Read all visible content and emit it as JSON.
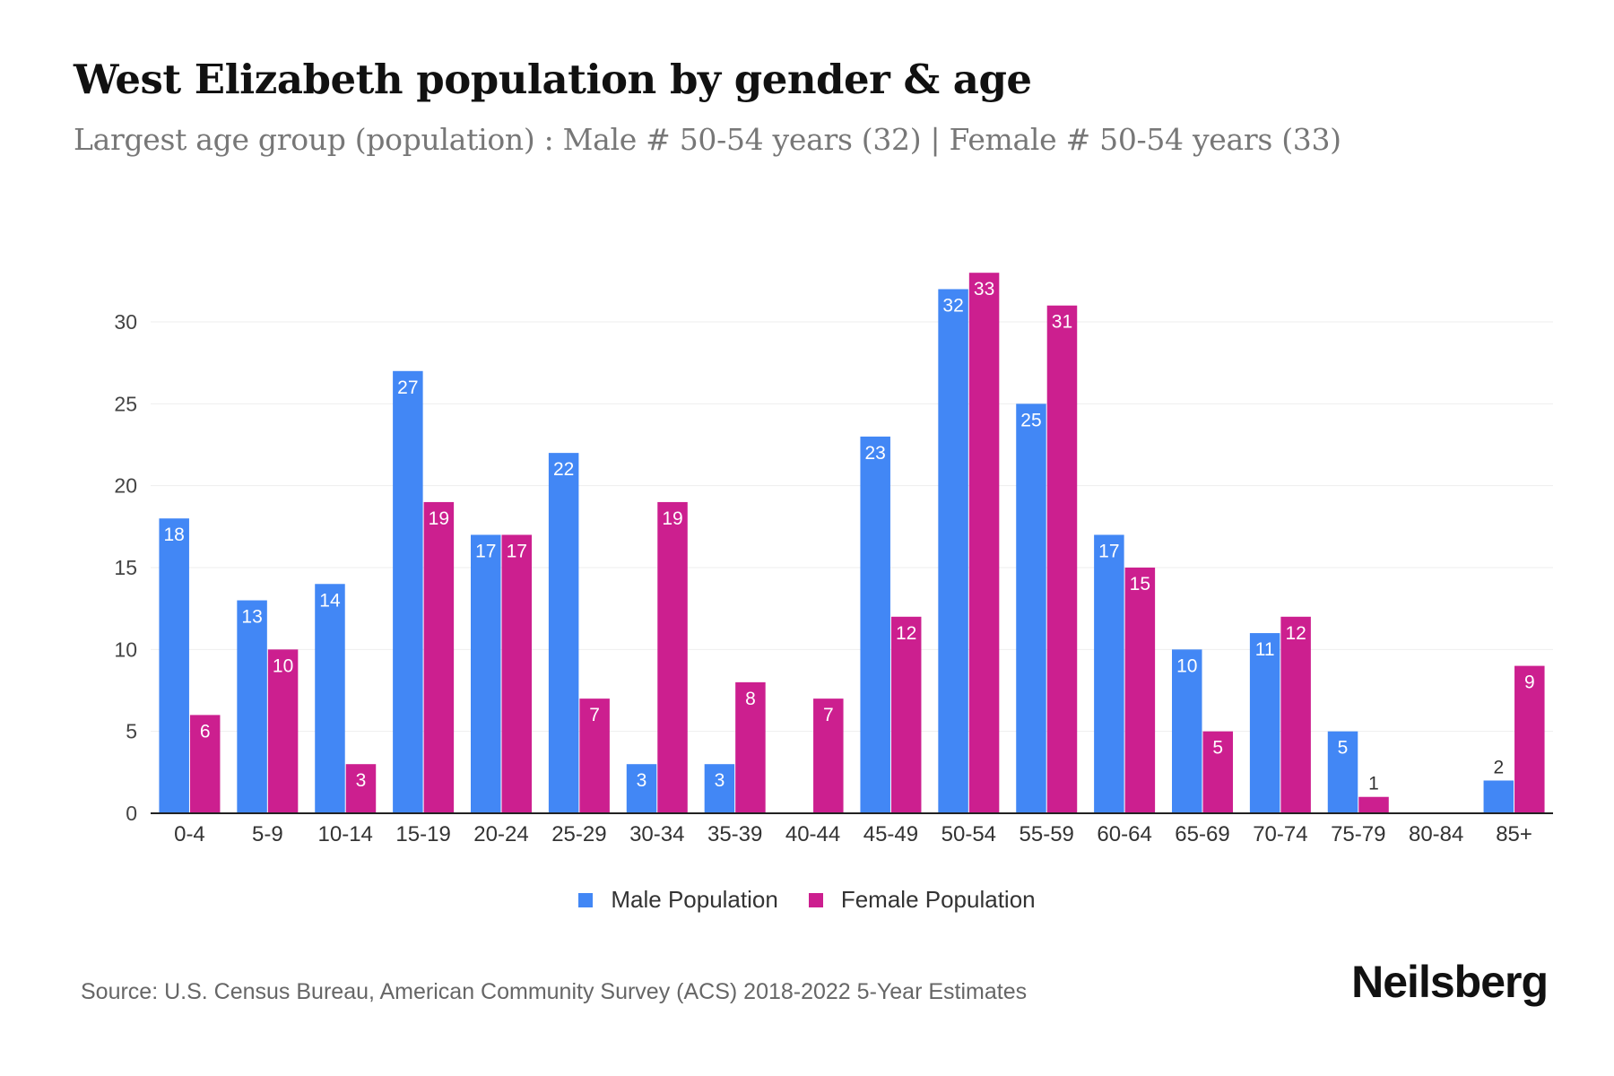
{
  "title": "West Elizabeth population by gender & age",
  "subtitle": "Largest age group (population) : Male # 50-54 years (32) | Female # 50-54 years (33)",
  "source": "Source: U.S. Census Bureau, American Community Survey (ACS) 2018-2022 5-Year Estimates",
  "brand": "Neilsberg",
  "chart_data": {
    "type": "bar",
    "categories": [
      "0-4",
      "5-9",
      "10-14",
      "15-19",
      "20-24",
      "25-29",
      "30-34",
      "35-39",
      "40-44",
      "45-49",
      "50-54",
      "55-59",
      "60-64",
      "65-69",
      "70-74",
      "75-79",
      "80-84",
      "85+"
    ],
    "series": [
      {
        "name": "Male Population",
        "color": "#4287f5",
        "values": [
          18,
          13,
          14,
          27,
          17,
          22,
          3,
          3,
          0,
          23,
          32,
          25,
          17,
          10,
          11,
          5,
          0,
          2
        ]
      },
      {
        "name": "Female Population",
        "color": "#cc1f8f",
        "values": [
          6,
          10,
          3,
          19,
          17,
          7,
          19,
          8,
          7,
          12,
          33,
          31,
          15,
          5,
          12,
          1,
          0,
          9
        ]
      }
    ],
    "yticks": [
      0,
      5,
      10,
      15,
      20,
      25,
      30
    ],
    "ylim": [
      0,
      33
    ],
    "xlabel": "",
    "ylabel": "",
    "grid": true,
    "legend": "bottom-center"
  }
}
